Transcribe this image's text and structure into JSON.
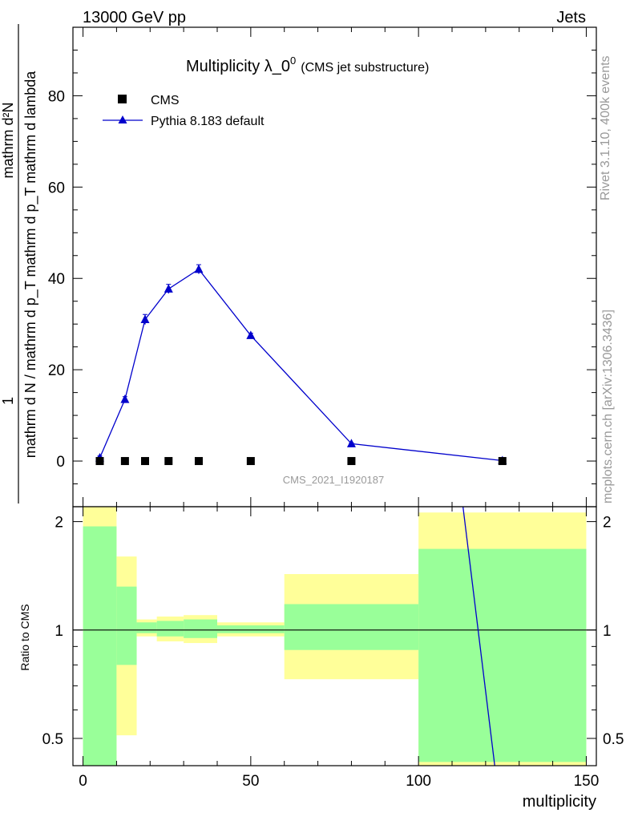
{
  "header": {
    "left": "13000 GeV pp",
    "right": "Jets"
  },
  "side_labels": {
    "rivet": "Rivet 3.1.10,  400k events",
    "mcplots": "mcplots.cern.ch [arXiv:1306.3436]"
  },
  "watermark": "CMS_2021_I1920187",
  "colors": {
    "pythia": "#0000cc",
    "band_inner": "#99ff99",
    "band_outer": "#ffff99",
    "data": "#000000"
  },
  "chart_data": [
    {
      "type": "line",
      "title": "Multiplicity λ_0",
      "title_sup": "0",
      "title_suffix": "(CMS jet substructure)",
      "ylabel_numerator": "1",
      "ylabel_denominator": "mathrm d N / mathrm d p_T mathrm d p_T mathrm d lambda",
      "ylabel_main": "mathrm d²N",
      "xlim": [
        -3,
        153
      ],
      "ylim": [
        -10,
        95
      ],
      "yticks": [
        0,
        20,
        40,
        60,
        80
      ],
      "legend": [
        {
          "label": "CMS",
          "marker": "square"
        },
        {
          "label": "Pythia 8.183 default",
          "marker": "triangle-line"
        }
      ],
      "series": [
        {
          "name": "CMS",
          "x": [
            5,
            12.5,
            18.5,
            25.5,
            34.5,
            50,
            80,
            125
          ],
          "y": [
            0,
            0,
            0,
            0,
            0,
            0,
            0,
            0
          ]
        },
        {
          "name": "Pythia 8.183 default",
          "x": [
            5,
            12.5,
            18.5,
            25.5,
            34.5,
            50,
            80,
            125
          ],
          "y": [
            0.7,
            13.5,
            31,
            37.7,
            42,
            27.5,
            3.8,
            0.1
          ],
          "err": [
            0.4,
            0.6,
            1.1,
            1.0,
            1.0,
            0.5,
            0.2,
            0.05
          ]
        }
      ]
    },
    {
      "type": "area",
      "ylabel": "Ratio to CMS",
      "xlabel": "multiplicity",
      "xlim": [
        -3,
        153
      ],
      "ylim": [
        0.42,
        2.2
      ],
      "xticks": [
        0,
        50,
        100,
        150
      ],
      "yticks": [
        0.5,
        1,
        2
      ],
      "reference": 1,
      "bins": [
        {
          "x0": 0,
          "x1": 10,
          "inner": [
            0.4,
            1.94
          ],
          "outer": [
            0.4,
            2.35
          ]
        },
        {
          "x0": 10,
          "x1": 16,
          "inner": [
            0.8,
            1.32
          ],
          "outer": [
            0.51,
            1.6
          ]
        },
        {
          "x0": 16,
          "x1": 22,
          "inner": [
            0.98,
            1.05
          ],
          "outer": [
            0.96,
            1.07
          ]
        },
        {
          "x0": 22,
          "x1": 30,
          "inner": [
            0.96,
            1.06
          ],
          "outer": [
            0.93,
            1.09
          ]
        },
        {
          "x0": 30,
          "x1": 40,
          "inner": [
            0.95,
            1.07
          ],
          "outer": [
            0.92,
            1.1
          ]
        },
        {
          "x0": 40,
          "x1": 60,
          "inner": [
            0.98,
            1.03
          ],
          "outer": [
            0.96,
            1.05
          ]
        },
        {
          "x0": 60,
          "x1": 100,
          "inner": [
            0.88,
            1.18
          ],
          "outer": [
            0.73,
            1.43
          ]
        },
        {
          "x0": 100,
          "x1": 150,
          "inner": [
            0.43,
            1.68
          ],
          "outer": [
            0.4,
            2.12
          ]
        }
      ],
      "ratio_line": {
        "name": "Pythia 8.183 default",
        "x": [
          113,
          123
        ],
        "y": [
          2.3,
          0.4
        ]
      }
    }
  ]
}
